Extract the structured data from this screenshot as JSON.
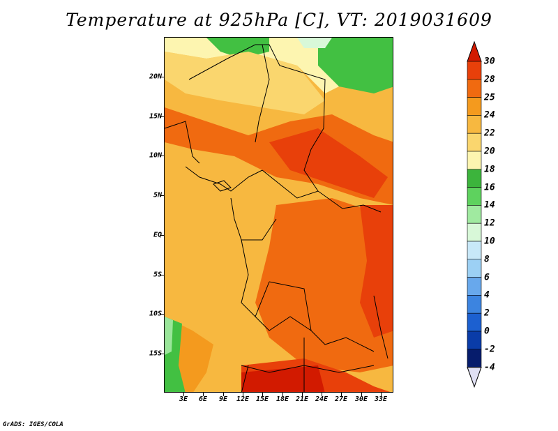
{
  "title": "Temperature at 925hPa [C], VT: 2019031609",
  "credit": "GrADS: IGES/COLA",
  "lat_labels": [
    "20N",
    "15N",
    "10N",
    "5N",
    "EQ",
    "5S",
    "10S",
    "15S"
  ],
  "lon_labels": [
    "3E",
    "6E",
    "9E",
    "12E",
    "15E",
    "18E",
    "21E",
    "24E",
    "27E",
    "30E",
    "33E"
  ],
  "colorbar": {
    "labels": [
      "30",
      "28",
      "25",
      "24",
      "22",
      "20",
      "18",
      "16",
      "14",
      "12",
      "10",
      "8",
      "6",
      "4",
      "2",
      "0",
      "-2",
      "-4"
    ],
    "colors": [
      "#d21a00",
      "#e8400a",
      "#f06a10",
      "#f49a1e",
      "#f7b840",
      "#fad66e",
      "#fdf5b0",
      "#3cb43c",
      "#5ed25e",
      "#a0eaa0",
      "#d8f8d8",
      "#c8e8f8",
      "#9cd0f4",
      "#68a8ec",
      "#3c84e0",
      "#1c60d0",
      "#0a3ca8",
      "#061c6c",
      "#e0e0f4"
    ]
  },
  "map_fills": {
    "desert_green": "#42c042",
    "light_green": "#9ae69a",
    "yellow": "#fad66e",
    "light_orange": "#f7b840",
    "orange": "#f49a1e",
    "dark_orange": "#f06a10",
    "red_orange": "#e8400a",
    "red": "#d21a00"
  }
}
